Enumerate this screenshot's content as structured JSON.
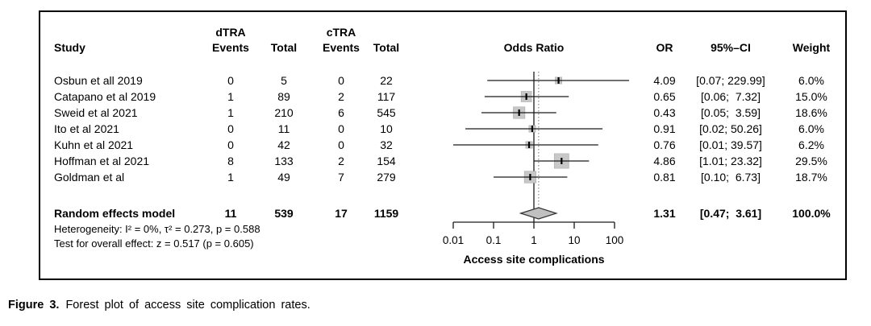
{
  "figure": {
    "caption_label": "Figure 3.",
    "caption_text": "Forest plot of access site complication rates."
  },
  "table": {
    "headers": {
      "study": "Study",
      "dtra_group": "dTRA",
      "ctra_group": "cTRA",
      "events": "Events",
      "total": "Total",
      "odds_ratio": "Odds Ratio",
      "or": "OR",
      "ci": "95%–CI",
      "weight": "Weight"
    }
  },
  "chart_data": {
    "type": "forest",
    "x_axis": {
      "scale": "log10",
      "ticks": [
        0.01,
        0.1,
        1,
        10,
        100
      ],
      "tick_labels": [
        "0.01",
        "0.1",
        "1",
        "10",
        "100"
      ],
      "label": "Access site complications",
      "reference_line": 1,
      "pooled_dotted_line": 1.31
    },
    "studies": [
      {
        "study": "Osbun et all 2019",
        "dtra_events": "0",
        "dtra_total": "5",
        "ctra_events": "0",
        "ctra_total": "22",
        "or": 4.09,
        "ci_low": 0.07,
        "ci_high": 229.99,
        "or_label": "4.09",
        "ci_label": "[0.07; 229.99]",
        "weight_label": "6.0%",
        "weight_value": 6.0
      },
      {
        "study": "Catapano et al 2019",
        "dtra_events": "1",
        "dtra_total": "89",
        "ctra_events": "2",
        "ctra_total": "117",
        "or": 0.65,
        "ci_low": 0.06,
        "ci_high": 7.32,
        "or_label": "0.65",
        "ci_label": "[0.06;  7.32]",
        "weight_label": "15.0%",
        "weight_value": 15.0
      },
      {
        "study": "Sweid et al 2021",
        "dtra_events": "1",
        "dtra_total": "210",
        "ctra_events": "6",
        "ctra_total": "545",
        "or": 0.43,
        "ci_low": 0.05,
        "ci_high": 3.59,
        "or_label": "0.43",
        "ci_label": "[0.05;  3.59]",
        "weight_label": "18.6%",
        "weight_value": 18.6
      },
      {
        "study": "Ito et al 2021",
        "dtra_events": "0",
        "dtra_total": "11",
        "ctra_events": "0",
        "ctra_total": "10",
        "or": 0.91,
        "ci_low": 0.02,
        "ci_high": 50.26,
        "or_label": "0.91",
        "ci_label": "[0.02; 50.26]",
        "weight_label": "6.0%",
        "weight_value": 6.0
      },
      {
        "study": "Kuhn et al 2021",
        "dtra_events": "0",
        "dtra_total": "42",
        "ctra_events": "0",
        "ctra_total": "32",
        "or": 0.76,
        "ci_low": 0.01,
        "ci_high": 39.57,
        "or_label": "0.76",
        "ci_label": "[0.01; 39.57]",
        "weight_label": "6.2%",
        "weight_value": 6.2
      },
      {
        "study": "Hoffman et al 2021",
        "dtra_events": "8",
        "dtra_total": "133",
        "ctra_events": "2",
        "ctra_total": "154",
        "or": 4.86,
        "ci_low": 1.01,
        "ci_high": 23.32,
        "or_label": "4.86",
        "ci_label": "[1.01; 23.32]",
        "weight_label": "29.5%",
        "weight_value": 29.5
      },
      {
        "study": "Goldman et al",
        "dtra_events": "1",
        "dtra_total": "49",
        "ctra_events": "7",
        "ctra_total": "279",
        "or": 0.81,
        "ci_low": 0.1,
        "ci_high": 6.73,
        "or_label": "0.81",
        "ci_label": "[0.10;  6.73]",
        "weight_label": "18.7%",
        "weight_value": 18.7
      }
    ],
    "summary": {
      "label": "Random effects model",
      "dtra_events": "11",
      "dtra_total": "539",
      "ctra_events": "17",
      "ctra_total": "1159",
      "or": 1.31,
      "ci_low": 0.47,
      "ci_high": 3.61,
      "or_label": "1.31",
      "ci_label": "[0.47;  3.61]",
      "weight_label": "100.0%"
    },
    "heterogeneity_note": "Heterogeneity: I² = 0%, τ² = 0.273, p = 0.588",
    "overall_effect_note": "Test for overall effect: z = 0.517 (p = 0.605)",
    "colors": {
      "marker_fill": "#c8c8c8",
      "marker_edge": "#aaaaaa",
      "diamond_fill": "#c0c0c0",
      "line": "#1a1a1a",
      "dotted_line": "#888888"
    }
  }
}
